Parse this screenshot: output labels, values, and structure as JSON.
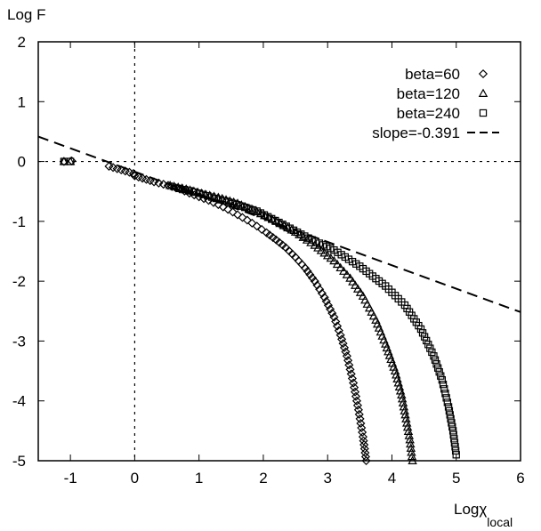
{
  "chart_data": {
    "type": "scatter",
    "ylabel": "Log F",
    "xlabel": "Logχ",
    "xlabel_sub": "local",
    "xlim": [
      -1.5,
      6
    ],
    "ylim": [
      -5,
      2
    ],
    "xticks": [
      -1,
      0,
      1,
      2,
      3,
      4,
      5,
      6
    ],
    "yticks": [
      -5,
      -4,
      -3,
      -2,
      -1,
      0,
      1,
      2
    ],
    "xtick_labels": [
      "-1",
      "0",
      "1",
      "2",
      "3",
      "4",
      "5",
      "6"
    ],
    "ytick_labels": [
      "-5",
      "-4",
      "-3",
      "-2",
      "-1",
      "0",
      "1",
      "2"
    ],
    "reference_lines": {
      "x": 0,
      "y": 0,
      "style": "dotted"
    },
    "legend_position": "top-right",
    "series": [
      {
        "name": "beta=60",
        "marker": "diamond",
        "points": [
          [
            -1.1,
            0.0
          ],
          [
            -0.98,
            0.01
          ],
          [
            -0.4,
            -0.08
          ],
          [
            -0.02,
            -0.2
          ],
          [
            0.0,
            -0.24
          ],
          [
            0.3,
            -0.34
          ],
          [
            0.52,
            -0.4
          ],
          [
            0.7,
            -0.46
          ],
          [
            0.85,
            -0.53
          ],
          [
            1.0,
            -0.59
          ],
          [
            1.15,
            -0.65
          ],
          [
            1.3,
            -0.72
          ],
          [
            1.45,
            -0.8
          ],
          [
            1.6,
            -0.89
          ],
          [
            1.75,
            -0.98
          ],
          [
            1.9,
            -1.08
          ],
          [
            2.05,
            -1.19
          ],
          [
            2.2,
            -1.31
          ],
          [
            2.35,
            -1.44
          ],
          [
            2.5,
            -1.6
          ],
          [
            2.65,
            -1.78
          ],
          [
            2.8,
            -2.0
          ],
          [
            2.95,
            -2.27
          ],
          [
            3.1,
            -2.6
          ],
          [
            3.2,
            -2.9
          ],
          [
            3.3,
            -3.25
          ],
          [
            3.4,
            -3.7
          ],
          [
            3.48,
            -4.15
          ],
          [
            3.55,
            -4.6
          ],
          [
            3.6,
            -5.0
          ]
        ]
      },
      {
        "name": "beta=120",
        "marker": "triangle",
        "points": [
          [
            -1.1,
            0.0
          ],
          [
            -1.0,
            0.0
          ],
          [
            0.55,
            -0.4
          ],
          [
            0.8,
            -0.46
          ],
          [
            1.1,
            -0.55
          ],
          [
            1.3,
            -0.6
          ],
          [
            1.6,
            -0.7
          ],
          [
            1.9,
            -0.84
          ],
          [
            2.2,
            -1.0
          ],
          [
            2.5,
            -1.18
          ],
          [
            2.8,
            -1.4
          ],
          [
            3.1,
            -1.66
          ],
          [
            3.35,
            -1.95
          ],
          [
            3.55,
            -2.25
          ],
          [
            3.75,
            -2.65
          ],
          [
            3.9,
            -3.05
          ],
          [
            4.05,
            -3.5
          ],
          [
            4.15,
            -3.9
          ],
          [
            4.22,
            -4.3
          ],
          [
            4.28,
            -4.65
          ],
          [
            4.32,
            -5.0
          ]
        ]
      },
      {
        "name": "beta=240",
        "marker": "square",
        "points": [
          [
            -1.1,
            0.0
          ],
          [
            -1.0,
            0.0
          ],
          [
            0.7,
            -0.45
          ],
          [
            1.0,
            -0.53
          ],
          [
            1.4,
            -0.66
          ],
          [
            1.9,
            -0.83
          ],
          [
            2.3,
            -1.05
          ],
          [
            2.7,
            -1.28
          ],
          [
            3.1,
            -1.48
          ],
          [
            3.5,
            -1.75
          ],
          [
            3.9,
            -2.08
          ],
          [
            4.2,
            -2.4
          ],
          [
            4.45,
            -2.8
          ],
          [
            4.65,
            -3.25
          ],
          [
            4.78,
            -3.65
          ],
          [
            4.88,
            -4.1
          ],
          [
            4.95,
            -4.5
          ],
          [
            5.0,
            -4.9
          ]
        ]
      }
    ],
    "fit_line": {
      "name": "slope=-0.391",
      "slope": -0.391,
      "intercept": -0.17,
      "x_range": [
        -1.5,
        6
      ]
    },
    "legend_markers": [
      {
        "name": "beta=60",
        "marker": "diamond"
      },
      {
        "name": "beta=120",
        "marker": "triangle"
      },
      {
        "name": "beta=240",
        "marker": "square"
      },
      {
        "name": "slope=-0.391",
        "marker": "dashed-line"
      }
    ]
  }
}
